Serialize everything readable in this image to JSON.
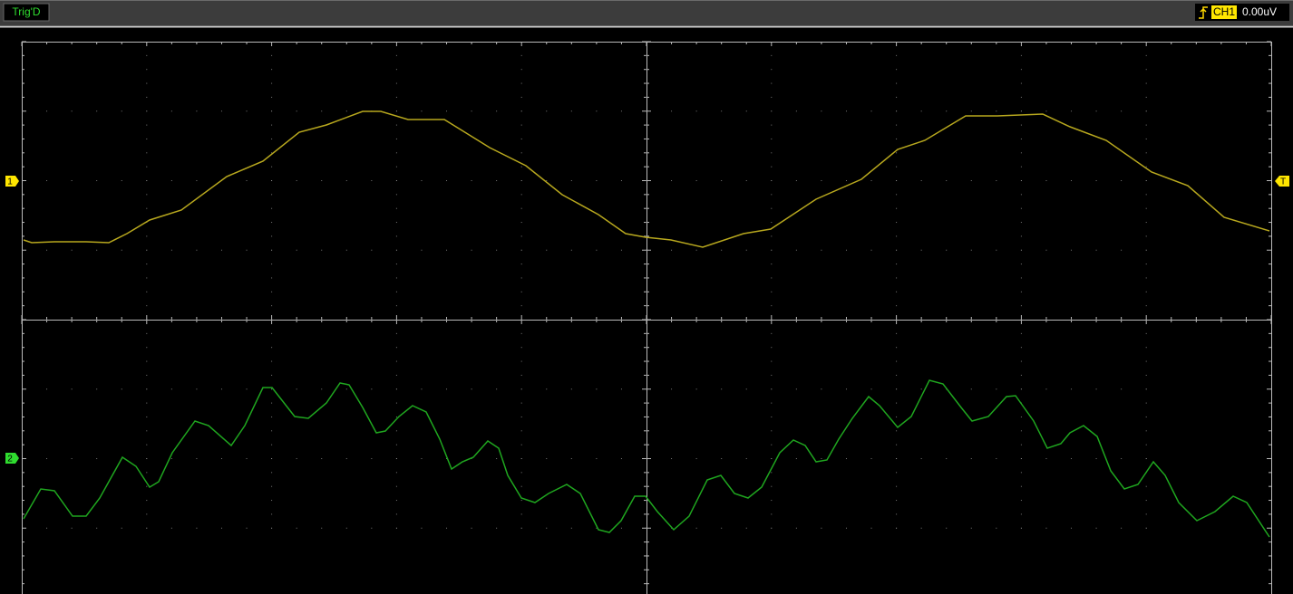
{
  "status_bar": {
    "trigger_state": "Trig'D",
    "trigger_channel": "CH1",
    "trigger_level": "0.00uV"
  },
  "markers": {
    "channel_1": "1",
    "channel_2": "2",
    "trigger": "T"
  }
}
